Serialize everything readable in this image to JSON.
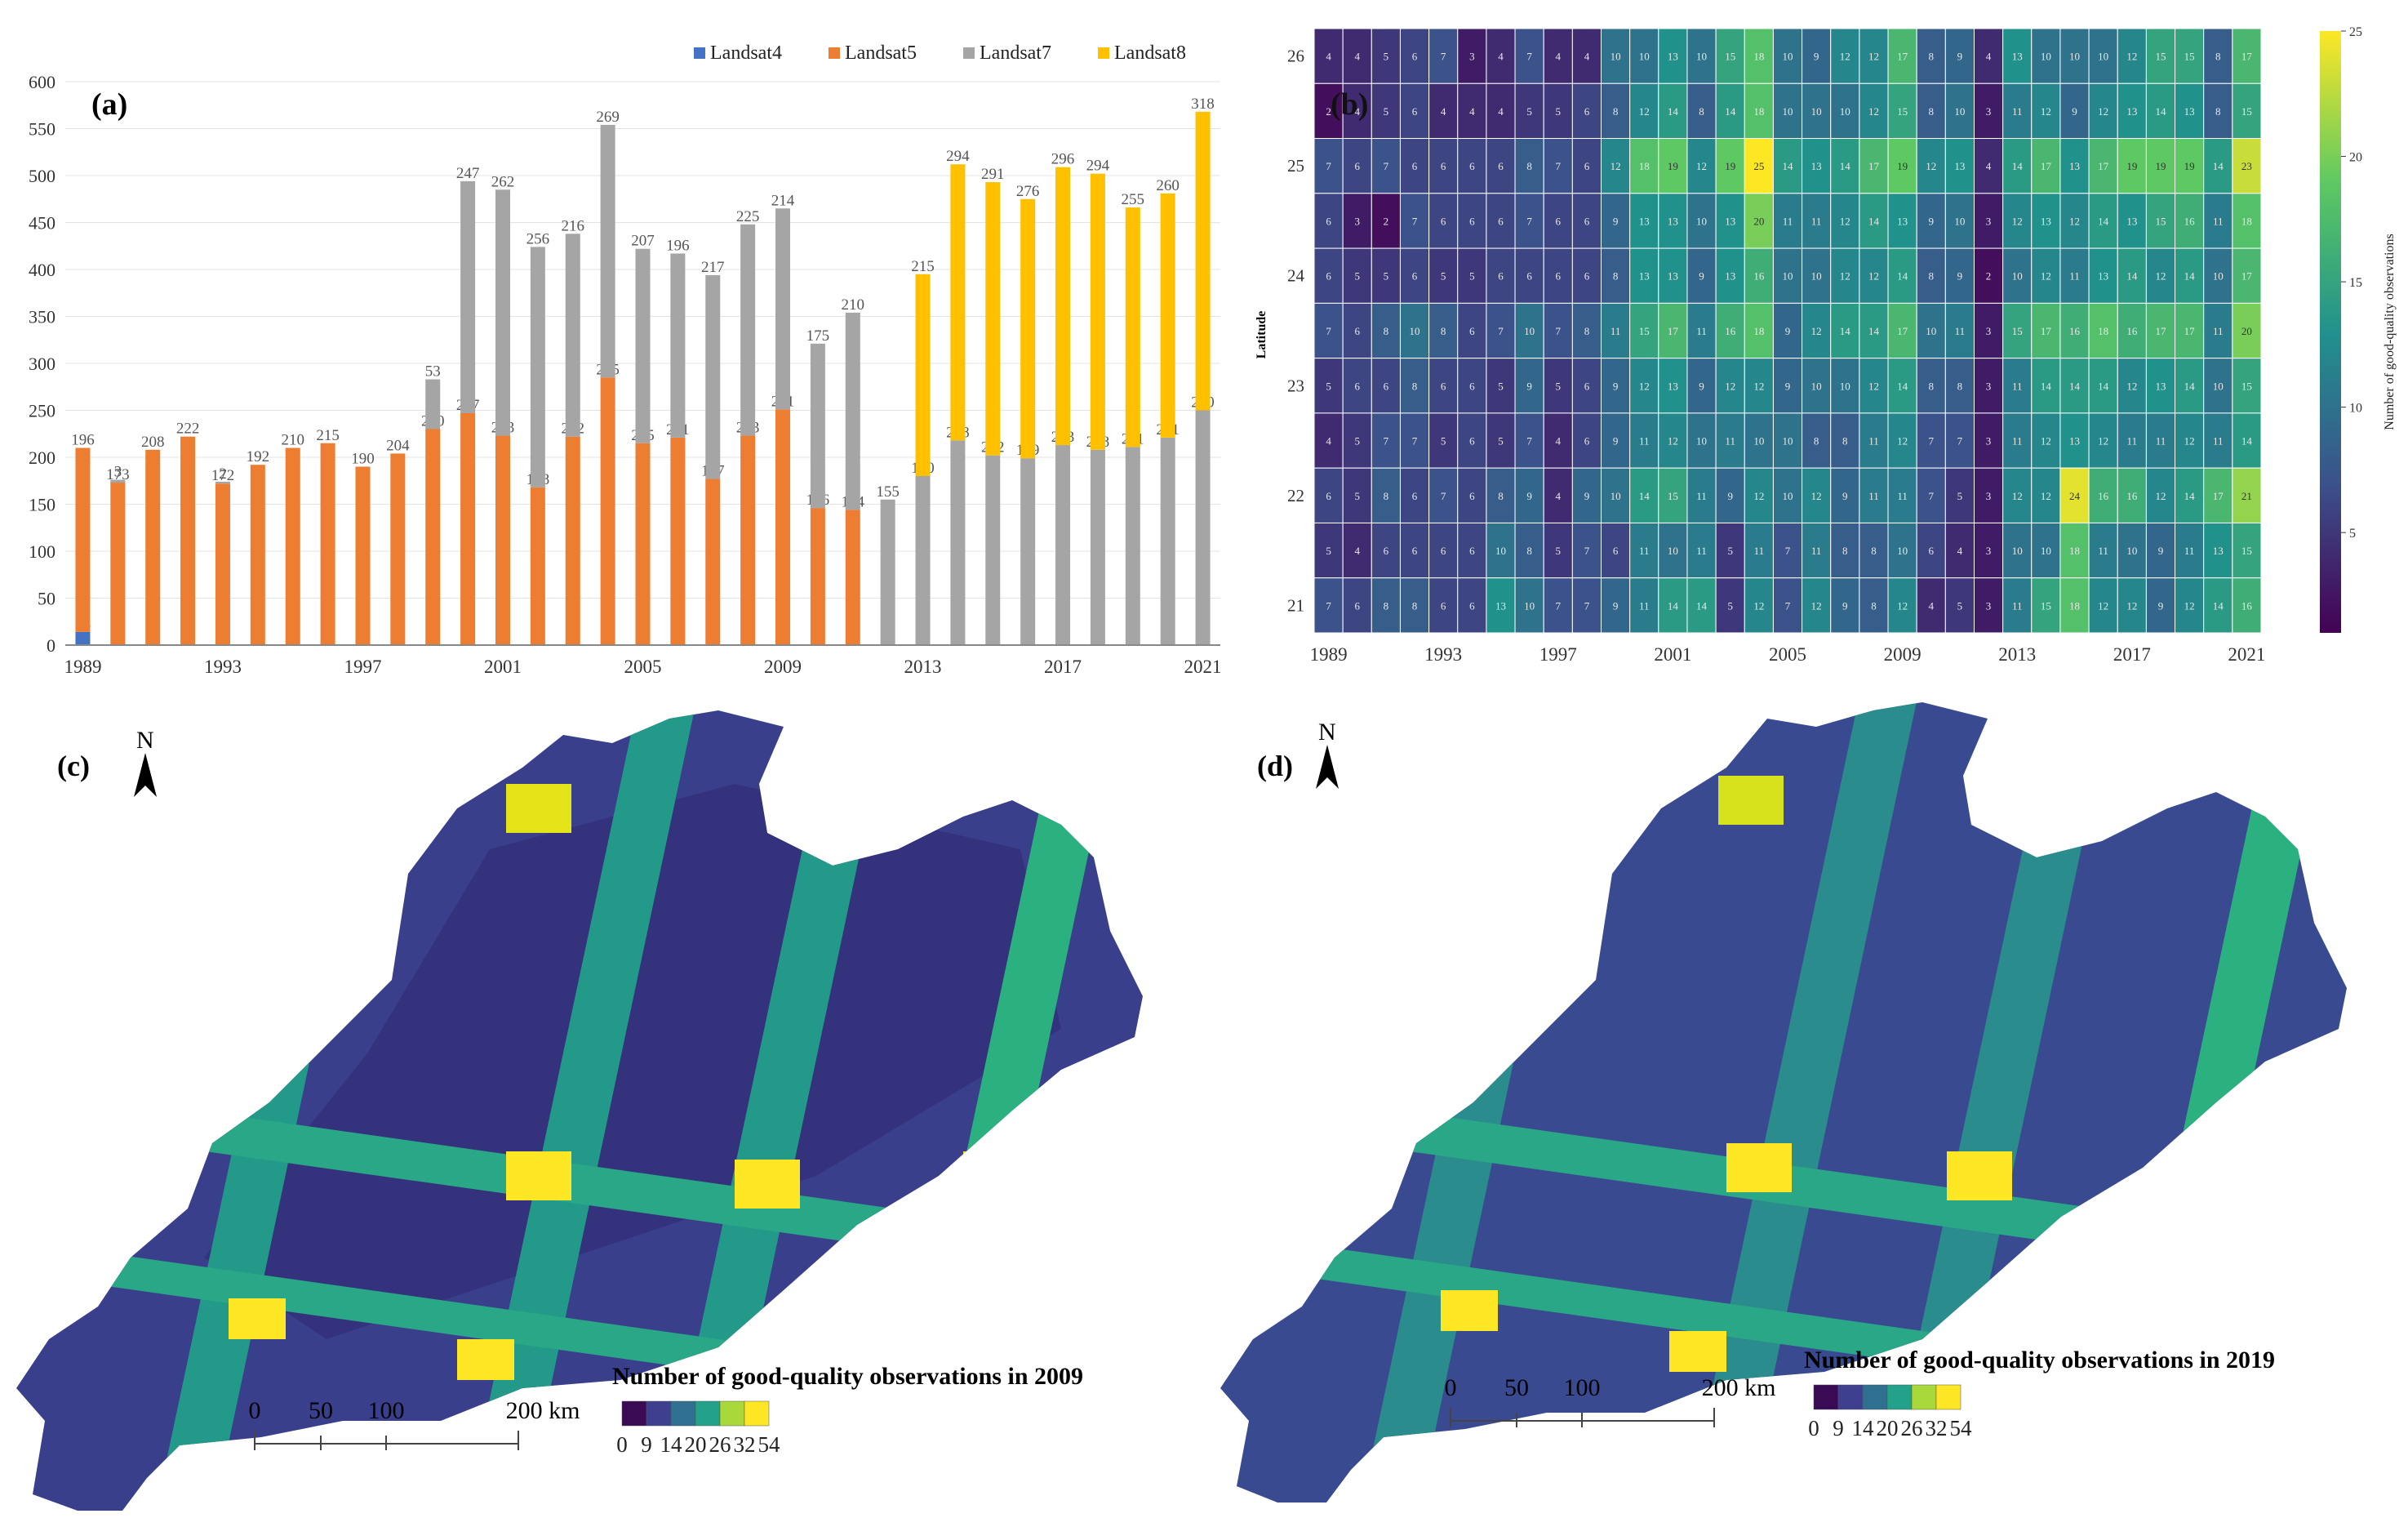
{
  "chart_data": [
    {
      "type": "bar",
      "stacked": true,
      "panel_label": "(a)",
      "title": "",
      "xlabel": "",
      "ylabel": "",
      "ylim": [
        0,
        600
      ],
      "yticks": [
        0,
        50,
        100,
        150,
        200,
        250,
        300,
        350,
        400,
        450,
        500,
        550,
        600
      ],
      "xtick_labels": [
        "1989",
        "1993",
        "1997",
        "2001",
        "2005",
        "2009",
        "2013",
        "2017",
        "2021"
      ],
      "legend_position": "top-right",
      "categories": [
        "1989",
        "1990",
        "1991",
        "1992",
        "1993",
        "1994",
        "1995",
        "1996",
        "1997",
        "1998",
        "1999",
        "2000",
        "2001",
        "2002",
        "2003",
        "2004",
        "2005",
        "2006",
        "2007",
        "2008",
        "2009",
        "2010",
        "2011",
        "2012",
        "2013",
        "2014",
        "2015",
        "2016",
        "2017",
        "2018",
        "2019",
        "2020",
        "2021"
      ],
      "series": [
        {
          "name": "Landsat4",
          "color": "#4472c4",
          "values": [
            14,
            0,
            0,
            0,
            0,
            0,
            0,
            0,
            0,
            0,
            0,
            0,
            0,
            0,
            0,
            0,
            0,
            0,
            0,
            0,
            0,
            0,
            0,
            0,
            0,
            0,
            0,
            0,
            0,
            0,
            0,
            0,
            0
          ],
          "labels": [
            "14",
            "",
            "",
            "",
            "",
            "",
            "",
            "",
            "",
            "",
            "",
            "",
            "",
            "",
            "",
            "",
            "",
            "",
            "",
            "",
            "",
            "",
            "",
            "",
            "",
            "",
            "",
            "",
            "",
            "",
            "",
            "",
            ""
          ]
        },
        {
          "name": "Landsat5",
          "color": "#ed7d31",
          "values": [
            196,
            173,
            208,
            222,
            172,
            192,
            210,
            215,
            190,
            204,
            230,
            247,
            223,
            168,
            222,
            285,
            215,
            221,
            177,
            223,
            251,
            146,
            144,
            0,
            0,
            0,
            0,
            0,
            0,
            0,
            0,
            0,
            0
          ],
          "labels": [
            "196",
            "173",
            "208",
            "222",
            "172",
            "192",
            "210",
            "215",
            "190",
            "204",
            "230",
            "247",
            "223",
            "168",
            "222",
            "285",
            "215",
            "221",
            "177",
            "223",
            "251",
            "146",
            "144",
            "",
            "",
            "",
            "",
            "",
            "",
            "",
            "",
            "",
            ""
          ]
        },
        {
          "name": "Landsat7",
          "color": "#a5a5a5",
          "values": [
            0,
            3,
            0,
            0,
            2,
            0,
            0,
            0,
            0,
            0,
            53,
            247,
            262,
            256,
            216,
            269,
            207,
            196,
            217,
            225,
            214,
            175,
            210,
            155,
            180,
            218,
            202,
            199,
            213,
            208,
            211,
            221,
            250
          ],
          "labels": [
            "",
            "3",
            "",
            "",
            "2",
            "",
            "",
            "",
            "",
            "",
            "53",
            "247",
            "262",
            "256",
            "216",
            "269",
            "207",
            "196",
            "217",
            "225",
            "214",
            "175",
            "210",
            "155",
            "180",
            "218",
            "202",
            "199",
            "213",
            "208",
            "211",
            "221",
            "250"
          ]
        },
        {
          "name": "Landsat8",
          "color": "#ffc000",
          "values": [
            0,
            0,
            0,
            0,
            0,
            0,
            0,
            0,
            0,
            0,
            0,
            0,
            0,
            0,
            0,
            0,
            0,
            0,
            0,
            0,
            0,
            0,
            0,
            0,
            215,
            294,
            291,
            276,
            296,
            294,
            255,
            260,
            318
          ],
          "labels": [
            "",
            "",
            "",
            "",
            "",
            "",
            "",
            "",
            "",
            "",
            "",
            "",
            "",
            "",
            "",
            "",
            "",
            "",
            "",
            "",
            "",
            "",
            "",
            "",
            "215",
            "294",
            "291",
            "276",
            "296",
            "294",
            "255",
            "260",
            "318"
          ]
        }
      ]
    },
    {
      "type": "heatmap",
      "panel_label": "(b)",
      "ylabel": "Latitude",
      "colorbar_label": "Number of good-quality observations",
      "colorbar_range": [
        1,
        25
      ],
      "colorbar_ticks": [
        "5",
        "10",
        "15",
        "20",
        "25"
      ],
      "xtick_labels": [
        "1989",
        "1993",
        "1997",
        "2001",
        "2005",
        "2009",
        "2013",
        "2017",
        "2021"
      ],
      "years": [
        "1989",
        "1990",
        "1991",
        "1992",
        "1993",
        "1994",
        "1995",
        "1996",
        "1997",
        "1998",
        "1999",
        "2000",
        "2001",
        "2002",
        "2003",
        "2004",
        "2005",
        "2006",
        "2007",
        "2008",
        "2009",
        "2010",
        "2011",
        "2012",
        "2013",
        "2014",
        "2015",
        "2016",
        "2017",
        "2018",
        "2019",
        "2020",
        "2021"
      ],
      "rows": [
        {
          "label": "26",
          "values": [
            4,
            4,
            5,
            6,
            7,
            3,
            4,
            7,
            4,
            4,
            10,
            10,
            13,
            10,
            15,
            18,
            10,
            9,
            12,
            12,
            17,
            8,
            9,
            4,
            13,
            10,
            10,
            10,
            12,
            15,
            15,
            8,
            17
          ]
        },
        {
          "label": "",
          "values": [
            2,
            4,
            5,
            6,
            4,
            4,
            4,
            5,
            5,
            6,
            8,
            12,
            14,
            8,
            14,
            18,
            10,
            10,
            10,
            12,
            15,
            8,
            10,
            3,
            11,
            12,
            9,
            12,
            13,
            14,
            13,
            8,
            15
          ]
        },
        {
          "label": "25",
          "values": [
            7,
            6,
            7,
            6,
            6,
            6,
            6,
            8,
            7,
            6,
            12,
            18,
            19,
            12,
            19,
            25,
            14,
            13,
            14,
            17,
            19,
            12,
            13,
            4,
            14,
            17,
            13,
            17,
            19,
            19,
            19,
            14,
            23
          ]
        },
        {
          "label": "",
          "values": [
            6,
            3,
            2,
            7,
            6,
            6,
            6,
            7,
            6,
            6,
            9,
            13,
            13,
            10,
            13,
            20,
            11,
            11,
            12,
            14,
            13,
            9,
            10,
            3,
            12,
            13,
            12,
            14,
            13,
            15,
            16,
            11,
            18
          ]
        },
        {
          "label": "24",
          "values": [
            6,
            5,
            5,
            6,
            5,
            5,
            6,
            6,
            6,
            6,
            8,
            13,
            13,
            9,
            13,
            16,
            10,
            10,
            12,
            12,
            14,
            8,
            9,
            2,
            10,
            12,
            11,
            13,
            14,
            12,
            14,
            10,
            17
          ]
        },
        {
          "label": "",
          "values": [
            7,
            6,
            8,
            10,
            8,
            6,
            7,
            10,
            7,
            8,
            11,
            15,
            17,
            11,
            16,
            18,
            9,
            12,
            14,
            14,
            17,
            10,
            11,
            3,
            15,
            17,
            16,
            18,
            16,
            17,
            17,
            11,
            20
          ]
        },
        {
          "label": "23",
          "values": [
            5,
            6,
            6,
            8,
            6,
            6,
            5,
            9,
            5,
            6,
            9,
            12,
            13,
            9,
            12,
            12,
            9,
            10,
            10,
            12,
            14,
            8,
            8,
            3,
            11,
            14,
            14,
            14,
            12,
            13,
            14,
            10,
            15
          ]
        },
        {
          "label": "",
          "values": [
            4,
            5,
            7,
            7,
            5,
            6,
            5,
            7,
            4,
            6,
            9,
            11,
            12,
            10,
            11,
            10,
            10,
            8,
            8,
            11,
            12,
            7,
            7,
            3,
            11,
            12,
            13,
            12,
            11,
            11,
            12,
            11,
            14
          ]
        },
        {
          "label": "22",
          "values": [
            6,
            5,
            8,
            6,
            7,
            6,
            8,
            9,
            4,
            9,
            10,
            14,
            15,
            11,
            9,
            12,
            10,
            12,
            9,
            11,
            11,
            7,
            5,
            3,
            12,
            12,
            24,
            16,
            16,
            12,
            14,
            17,
            21
          ]
        },
        {
          "label": "",
          "values": [
            5,
            4,
            6,
            6,
            6,
            6,
            10,
            8,
            5,
            7,
            6,
            11,
            10,
            11,
            5,
            11,
            7,
            11,
            8,
            8,
            10,
            6,
            4,
            3,
            10,
            10,
            18,
            11,
            10,
            9,
            11,
            13,
            15
          ]
        },
        {
          "label": "21",
          "values": [
            7,
            6,
            8,
            8,
            6,
            6,
            13,
            10,
            7,
            7,
            9,
            11,
            14,
            14,
            5,
            12,
            7,
            12,
            9,
            8,
            12,
            4,
            5,
            3,
            11,
            15,
            18,
            12,
            12,
            9,
            12,
            14,
            16
          ]
        }
      ]
    }
  ],
  "maps": [
    {
      "panel_label": "(c)",
      "north": "N",
      "legend_title": "Number of good-quality observations in 2009",
      "legend_breaks": [
        "0",
        "9",
        "14",
        "20",
        "26",
        "32",
        "54"
      ],
      "legend_colors": [
        "#3a0a55",
        "#3e3f8f",
        "#2f6f90",
        "#24a18a",
        "#a8d83a",
        "#fde725"
      ],
      "scale_labels": [
        "0",
        "50",
        "100",
        "200 km"
      ]
    },
    {
      "panel_label": "(d)",
      "north": "N",
      "legend_title": "Number of good-quality observations in 2019",
      "legend_breaks": [
        "0",
        "9",
        "14",
        "20",
        "26",
        "32",
        "54"
      ],
      "legend_colors": [
        "#3a0a55",
        "#3e3f8f",
        "#2f6f90",
        "#24a18a",
        "#a8d83a",
        "#fde725"
      ],
      "scale_labels": [
        "0",
        "50",
        "100",
        "200 km"
      ]
    }
  ]
}
